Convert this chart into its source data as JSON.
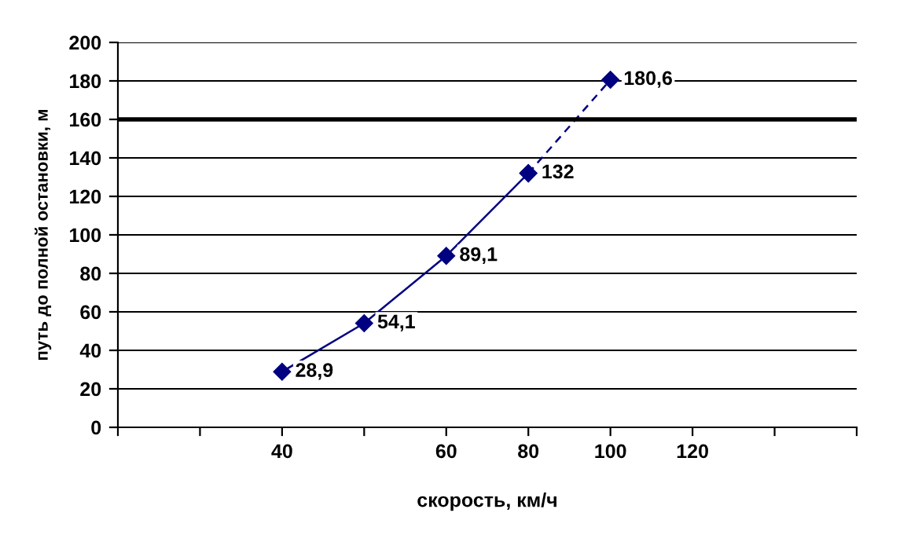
{
  "chart_data": {
    "type": "line",
    "xlabel": "скорость, км/ч",
    "ylabel": "путь до полной остановки, м",
    "categories": [
      null,
      null,
      "40",
      null,
      "60",
      "80",
      "100",
      "120",
      null,
      null
    ],
    "series": [
      {
        "color": "#000080",
        "line_style": "solid",
        "marker": "diamond",
        "values": [
          null,
          null,
          28.9,
          54.1,
          89.1,
          132,
          null,
          null,
          null,
          null
        ],
        "value_labels": [
          null,
          null,
          "28,9",
          "54,1",
          "89,1",
          "132",
          null,
          null,
          null,
          null
        ]
      },
      {
        "color": "#000080",
        "line_style": "dashed",
        "marker": "diamond",
        "values": [
          null,
          null,
          null,
          null,
          null,
          132,
          180.6,
          null,
          null,
          null
        ],
        "value_labels": [
          null,
          null,
          null,
          null,
          null,
          null,
          "180,6",
          null,
          null,
          null
        ]
      }
    ],
    "ylim": [
      0,
      200
    ],
    "yticks": [
      0,
      20,
      40,
      60,
      80,
      100,
      120,
      140,
      160,
      180,
      200
    ],
    "grid": "y",
    "legend": false,
    "ref_lines": [
      {
        "axis": "y",
        "value": 160,
        "color": "#000000"
      }
    ]
  }
}
